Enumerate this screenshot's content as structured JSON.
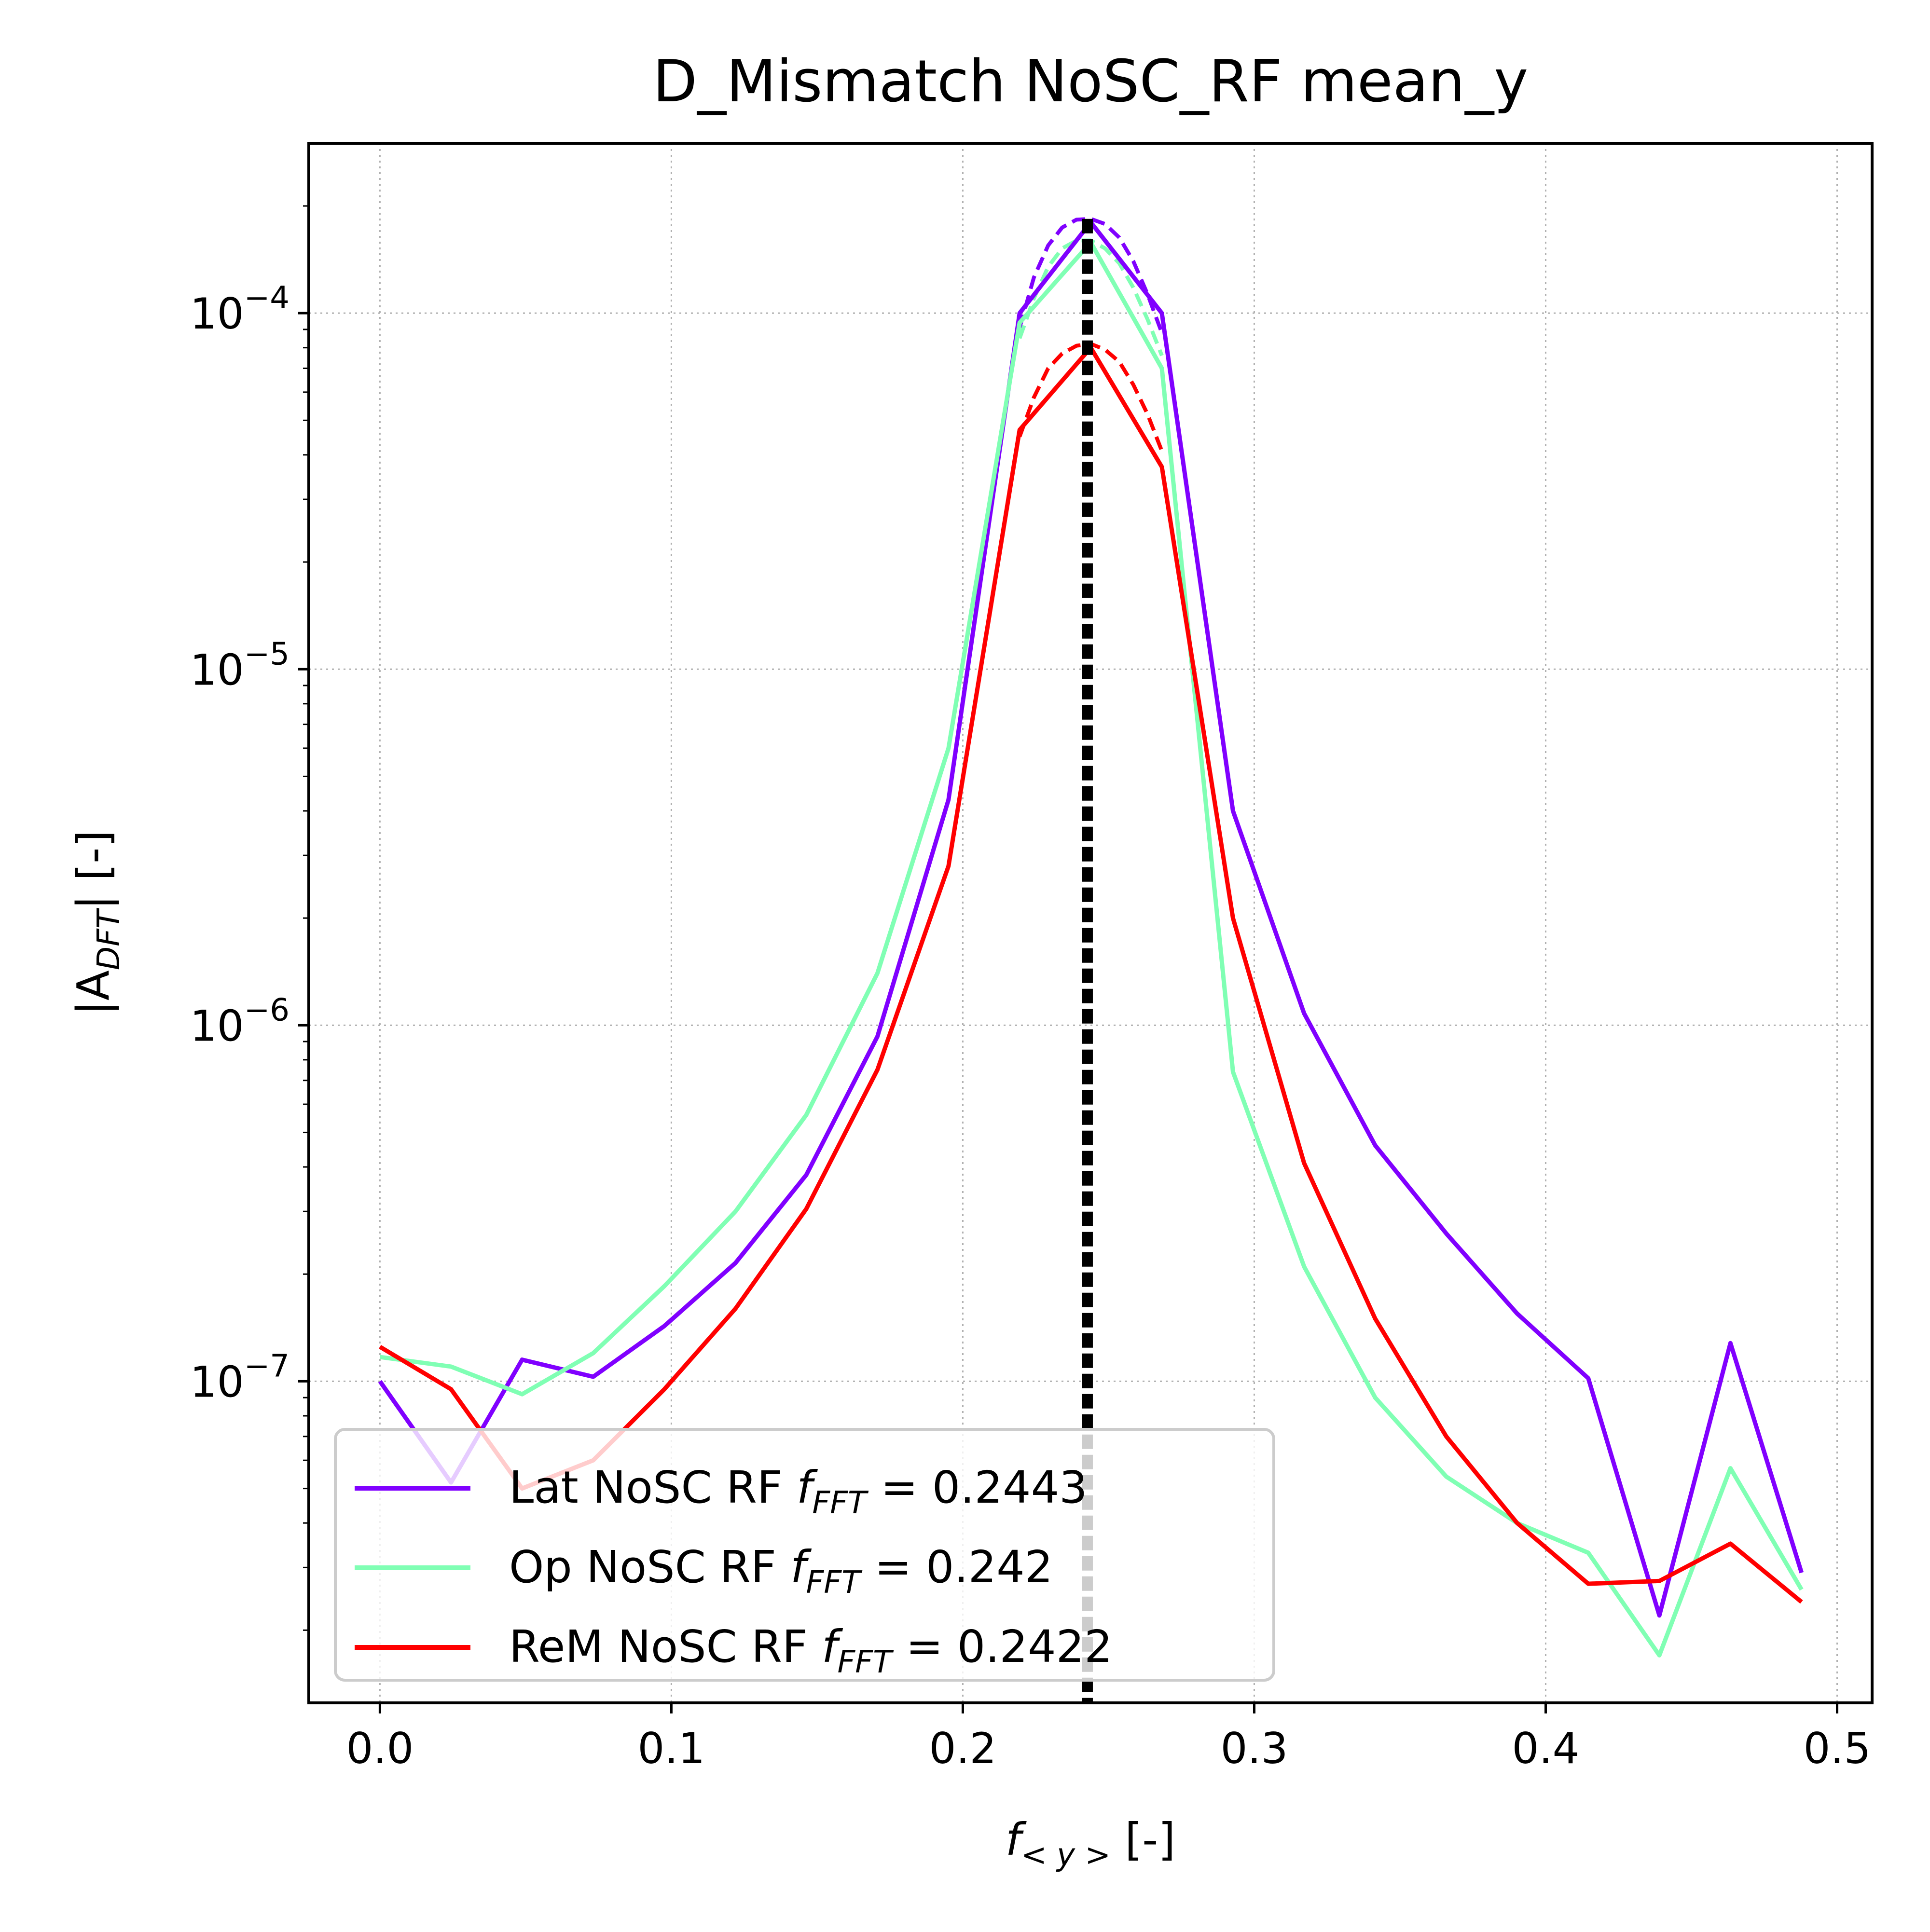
{
  "chart_data": {
    "type": "line",
    "title": "D_Mismatch NoSC_RF mean_y",
    "xlabel": "f",
    "xlabel_sub": "< y >",
    "xlabel_unit": "[-]",
    "ylabel": "|A",
    "ylabel_sub": "DFT",
    "ylabel_unit": "| [-]",
    "x_scale": "linear",
    "y_scale": "log",
    "xlim": [
      -0.0244,
      0.512
    ],
    "ylim": [
      1.25e-08,
      0.0003
    ],
    "x_ticks": [
      {
        "value": 0.0,
        "label": "0.0"
      },
      {
        "value": 0.1,
        "label": "0.1"
      },
      {
        "value": 0.2,
        "label": "0.2"
      },
      {
        "value": 0.3,
        "label": "0.3"
      },
      {
        "value": 0.4,
        "label": "0.4"
      },
      {
        "value": 0.5,
        "label": "0.5"
      }
    ],
    "y_ticks": [
      {
        "value": 1e-07,
        "base": "10",
        "exp": "−7"
      },
      {
        "value": 1e-06,
        "base": "10",
        "exp": "−6"
      },
      {
        "value": 1e-05,
        "base": "10",
        "exp": "−5"
      },
      {
        "value": 0.0001,
        "base": "10",
        "exp": "−4"
      }
    ],
    "grid": true,
    "legend_placement": "lower-left",
    "x": [
      0.0,
      0.0244,
      0.0488,
      0.0732,
      0.0976,
      0.122,
      0.1463,
      0.1707,
      0.1951,
      0.2195,
      0.2439,
      0.2683,
      0.2927,
      0.3171,
      0.3415,
      0.3659,
      0.3902,
      0.4146,
      0.439,
      0.4634,
      0.4878
    ],
    "series": [
      {
        "key": "lat",
        "legend_label": "Lat NoSC RF ",
        "legend_f": "f",
        "legend_sub": "FFT",
        "legend_eq": " =  ",
        "legend_value": "0.2443",
        "color": "#8000ff",
        "values": [
          1e-07,
          5.2e-08,
          1.15e-07,
          1.03e-07,
          1.43e-07,
          2.15e-07,
          3.8e-07,
          9.3e-07,
          4.3e-06,
          0.0001,
          0.00018,
          0.0001,
          4e-06,
          1.08e-06,
          4.6e-07,
          2.6e-07,
          1.55e-07,
          1.02e-07,
          2.2e-08,
          1.28e-07,
          2.9e-08
        ]
      },
      {
        "key": "op",
        "legend_label": "Op NoSC RF ",
        "legend_f": "f",
        "legend_sub": "FFT",
        "legend_eq": " =  ",
        "legend_value": "0.242",
        "color": "#80ffb4",
        "values": [
          1.17e-07,
          1.1e-07,
          9.2e-08,
          1.2e-07,
          1.85e-07,
          3e-07,
          5.6e-07,
          1.4e-06,
          6e-06,
          9.4e-05,
          0.000158,
          7e-05,
          7.4e-07,
          2.1e-07,
          9e-08,
          5.4e-08,
          4e-08,
          3.3e-08,
          1.7e-08,
          5.7e-08,
          2.6e-08
        ]
      },
      {
        "key": "rem",
        "legend_label": "ReM NoSC RF ",
        "legend_f": "f",
        "legend_sub": "FFT",
        "legend_eq": " =  ",
        "legend_value": "0.2422",
        "color": "#ff0000",
        "values": [
          1.25e-07,
          9.5e-08,
          5e-08,
          6e-08,
          9.5e-08,
          1.6e-07,
          3.05e-07,
          7.5e-07,
          2.8e-06,
          4.7e-05,
          8e-05,
          3.7e-05,
          2e-06,
          4.1e-07,
          1.5e-07,
          7e-08,
          4e-08,
          2.7e-08,
          2.75e-08,
          3.5e-08,
          2.4e-08
        ]
      }
    ],
    "peak_fits": [
      {
        "series": "lat",
        "color": "#8000ff",
        "x": [
          0.2195,
          0.2244,
          0.2293,
          0.2341,
          0.239,
          0.2439,
          0.2488,
          0.2537,
          0.2585,
          0.2634,
          0.2683
        ],
        "values": [
          9.1e-05,
          0.000126,
          0.000155,
          0.000174,
          0.000183,
          0.000184,
          0.000178,
          0.000163,
          0.00014,
          0.000113,
          8.8e-05
        ]
      },
      {
        "series": "op",
        "color": "#80ffb4",
        "x": [
          0.2195,
          0.2244,
          0.2293,
          0.2341,
          0.239,
          0.2439,
          0.2488,
          0.2537,
          0.2585,
          0.2634,
          0.2683
        ],
        "values": [
          8.5e-05,
          0.00011,
          0.000135,
          0.000152,
          0.00016,
          0.00016,
          0.000152,
          0.000138,
          0.000118,
          9.6e-05,
          7.6e-05
        ]
      },
      {
        "series": "rem",
        "color": "#ff0000",
        "x": [
          0.2195,
          0.2244,
          0.2293,
          0.2341,
          0.239,
          0.2439,
          0.2488,
          0.2537,
          0.2585,
          0.2634,
          0.2683
        ],
        "values": [
          4.5e-05,
          5.8e-05,
          7e-05,
          7.7e-05,
          8.1e-05,
          8.2e-05,
          7.9e-05,
          7.3e-05,
          6.3e-05,
          5.2e-05,
          4.1e-05
        ]
      }
    ],
    "vline": {
      "x": 0.2428,
      "color": "#000000",
      "style": "dotted"
    }
  }
}
